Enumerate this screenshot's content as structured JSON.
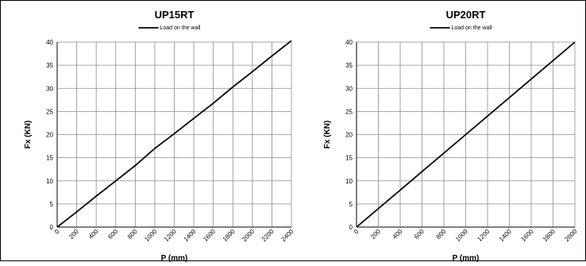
{
  "chart_data": [
    {
      "type": "line",
      "title": "UP15RT",
      "xlabel": "P (mm)",
      "ylabel": "Fx (KN)",
      "legend": "top-center",
      "grid": true,
      "xlim": [
        0,
        2400
      ],
      "ylim": [
        0,
        40
      ],
      "x_ticks": [
        "0",
        "200",
        "400",
        "600",
        "800",
        "1000",
        "1200",
        "1400",
        "1600",
        "1800",
        "2000",
        "2200",
        "2400"
      ],
      "y_ticks": [
        "0",
        "5",
        "10",
        "15",
        "20",
        "25",
        "30",
        "35",
        "40"
      ],
      "series": [
        {
          "name": "Load on the wall",
          "color": "#000000",
          "x": [
            0,
            200,
            400,
            600,
            800,
            1000,
            1200,
            1400,
            1600,
            1800,
            2000,
            2200,
            2400
          ],
          "y": [
            0,
            3.3,
            6.7,
            10.0,
            13.3,
            17.0,
            20.2,
            23.5,
            26.8,
            30.3,
            33.6,
            37.0,
            40.3
          ]
        }
      ]
    },
    {
      "type": "line",
      "title": "UP20RT",
      "xlabel": "P (mm)",
      "ylabel": "Fx (KN)",
      "legend": "top-center",
      "grid": true,
      "xlim": [
        0,
        2000
      ],
      "ylim": [
        0,
        40
      ],
      "x_ticks": [
        "0",
        "200",
        "400",
        "600",
        "800",
        "1000",
        "1200",
        "1400",
        "1600",
        "1800",
        "2000"
      ],
      "y_ticks": [
        "0",
        "5",
        "10",
        "15",
        "20",
        "25",
        "30",
        "35",
        "40"
      ],
      "series": [
        {
          "name": "Load on the wall",
          "color": "#000000",
          "x": [
            0,
            200,
            400,
            600,
            800,
            1000,
            1200,
            1400,
            1600,
            1800,
            2000
          ],
          "y": [
            0,
            4.0,
            8.0,
            12.0,
            16.0,
            20.0,
            24.0,
            28.0,
            32.0,
            36.0,
            40.0
          ]
        }
      ]
    }
  ]
}
